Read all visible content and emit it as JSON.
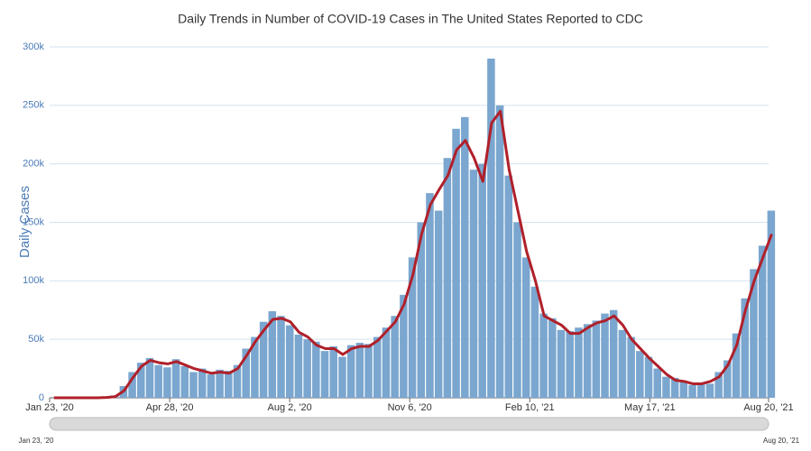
{
  "chart_data": {
    "type": "bar",
    "title": "Daily Trends in Number of COVID-19 Cases in The United States Reported to CDC",
    "y_label": "Daily Cases",
    "x": [
      "2020-01-23",
      "2020-01-30",
      "2020-02-06",
      "2020-02-13",
      "2020-02-20",
      "2020-02-27",
      "2020-03-05",
      "2020-03-12",
      "2020-03-19",
      "2020-03-26",
      "2020-04-02",
      "2020-04-09",
      "2020-04-16",
      "2020-04-23",
      "2020-04-30",
      "2020-05-07",
      "2020-05-14",
      "2020-05-21",
      "2020-05-28",
      "2020-06-04",
      "2020-06-11",
      "2020-06-18",
      "2020-06-25",
      "2020-07-02",
      "2020-07-09",
      "2020-07-16",
      "2020-07-23",
      "2020-07-30",
      "2020-08-06",
      "2020-08-13",
      "2020-08-20",
      "2020-08-27",
      "2020-09-03",
      "2020-09-10",
      "2020-09-17",
      "2020-09-24",
      "2020-10-01",
      "2020-10-08",
      "2020-10-15",
      "2020-10-22",
      "2020-10-29",
      "2020-11-05",
      "2020-11-12",
      "2020-11-19",
      "2020-11-26",
      "2020-12-03",
      "2020-12-10",
      "2020-12-17",
      "2020-12-24",
      "2020-12-31",
      "2021-01-07",
      "2021-01-14",
      "2021-01-21",
      "2021-01-28",
      "2021-02-04",
      "2021-02-11",
      "2021-02-18",
      "2021-02-25",
      "2021-03-04",
      "2021-03-11",
      "2021-03-18",
      "2021-03-25",
      "2021-04-01",
      "2021-04-08",
      "2021-04-15",
      "2021-04-22",
      "2021-04-29",
      "2021-05-06",
      "2021-05-13",
      "2021-05-20",
      "2021-05-27",
      "2021-06-03",
      "2021-06-10",
      "2021-06-17",
      "2021-06-24",
      "2021-07-01",
      "2021-07-08",
      "2021-07-15",
      "2021-07-22",
      "2021-07-29",
      "2021-08-05",
      "2021-08-12",
      "2021-08-19"
    ],
    "series": [
      {
        "type": "bar",
        "color": "#7aa6cf",
        "values": [
          0,
          0,
          0,
          0,
          0,
          0,
          500,
          2000,
          10000,
          22000,
          30000,
          34000,
          28000,
          26000,
          33000,
          27000,
          22000,
          25000,
          20000,
          24000,
          23000,
          28000,
          42000,
          52000,
          65000,
          74000,
          70000,
          62000,
          54000,
          50000,
          48000,
          40000,
          44000,
          35000,
          45000,
          47000,
          46000,
          52000,
          60000,
          70000,
          88000,
          120000,
          150000,
          175000,
          160000,
          205000,
          230000,
          240000,
          195000,
          200000,
          290000,
          250000,
          190000,
          150000,
          120000,
          95000,
          72000,
          68000,
          58000,
          57000,
          60000,
          63000,
          66000,
          72000,
          75000,
          58000,
          52000,
          40000,
          35000,
          25000,
          18000,
          17000,
          14000,
          11000,
          13000,
          12000,
          22000,
          32000,
          55000,
          85000,
          110000,
          130000,
          160000
        ]
      },
      {
        "type": "line",
        "color": "#b0202a",
        "values": [
          0,
          0,
          0,
          0,
          0,
          0,
          300,
          1000,
          6000,
          17000,
          27000,
          32000,
          30000,
          29000,
          31000,
          28000,
          25000,
          23000,
          21000,
          22000,
          21000,
          25000,
          36000,
          48000,
          58000,
          67000,
          68000,
          65000,
          56000,
          52000,
          45000,
          42000,
          42000,
          37000,
          42000,
          44000,
          44000,
          49000,
          57000,
          65000,
          80000,
          105000,
          140000,
          165000,
          178000,
          190000,
          212000,
          220000,
          205000,
          185000,
          235000,
          245000,
          195000,
          160000,
          125000,
          100000,
          70000,
          66000,
          62000,
          55000,
          55000,
          60000,
          64000,
          66000,
          70000,
          62000,
          50000,
          42000,
          34000,
          27000,
          20000,
          15000,
          14000,
          12000,
          12000,
          14000,
          18000,
          28000,
          45000,
          75000,
          100000,
          120000,
          140000
        ]
      }
    ],
    "xlim": [
      "2020-01-23",
      "2021-08-20"
    ],
    "xticks": [
      {
        "value": "2020-01-23",
        "label": "Jan 23, '20"
      },
      {
        "value": "2020-04-28",
        "label": "Apr 28, '20"
      },
      {
        "value": "2020-08-02",
        "label": "Aug 2, '20"
      },
      {
        "value": "2020-11-06",
        "label": "Nov 6, '20"
      },
      {
        "value": "2021-02-10",
        "label": "Feb 10, '21"
      },
      {
        "value": "2021-05-17",
        "label": "May 17, '21"
      },
      {
        "value": "2021-08-20",
        "label": "Aug 20, '21"
      }
    ],
    "ylim": [
      0,
      300000
    ],
    "yticks": [
      0,
      {
        "value": 50000,
        "label": "50k"
      },
      {
        "value": 100000,
        "label": "100k"
      },
      {
        "value": 150000,
        "label": "150k"
      },
      {
        "value": 200000,
        "label": "200k"
      },
      {
        "value": 250000,
        "label": "250k"
      },
      {
        "value": 300000,
        "label": "300k"
      }
    ],
    "grid": true,
    "range_slider": {
      "start_label": "Jan 23, '20",
      "end_label": "Aug 20, '21"
    }
  }
}
